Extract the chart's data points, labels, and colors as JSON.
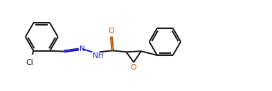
{
  "bg_color": "#ffffff",
  "line_color": "#1a1a1a",
  "n_color": "#1a1acd",
  "o_color": "#b85c00",
  "lw": 1.5,
  "fig_width": 3.93,
  "fig_height": 1.32,
  "dpi": 100,
  "xlim": [
    0,
    10
  ],
  "ylim": [
    0,
    2.6
  ]
}
